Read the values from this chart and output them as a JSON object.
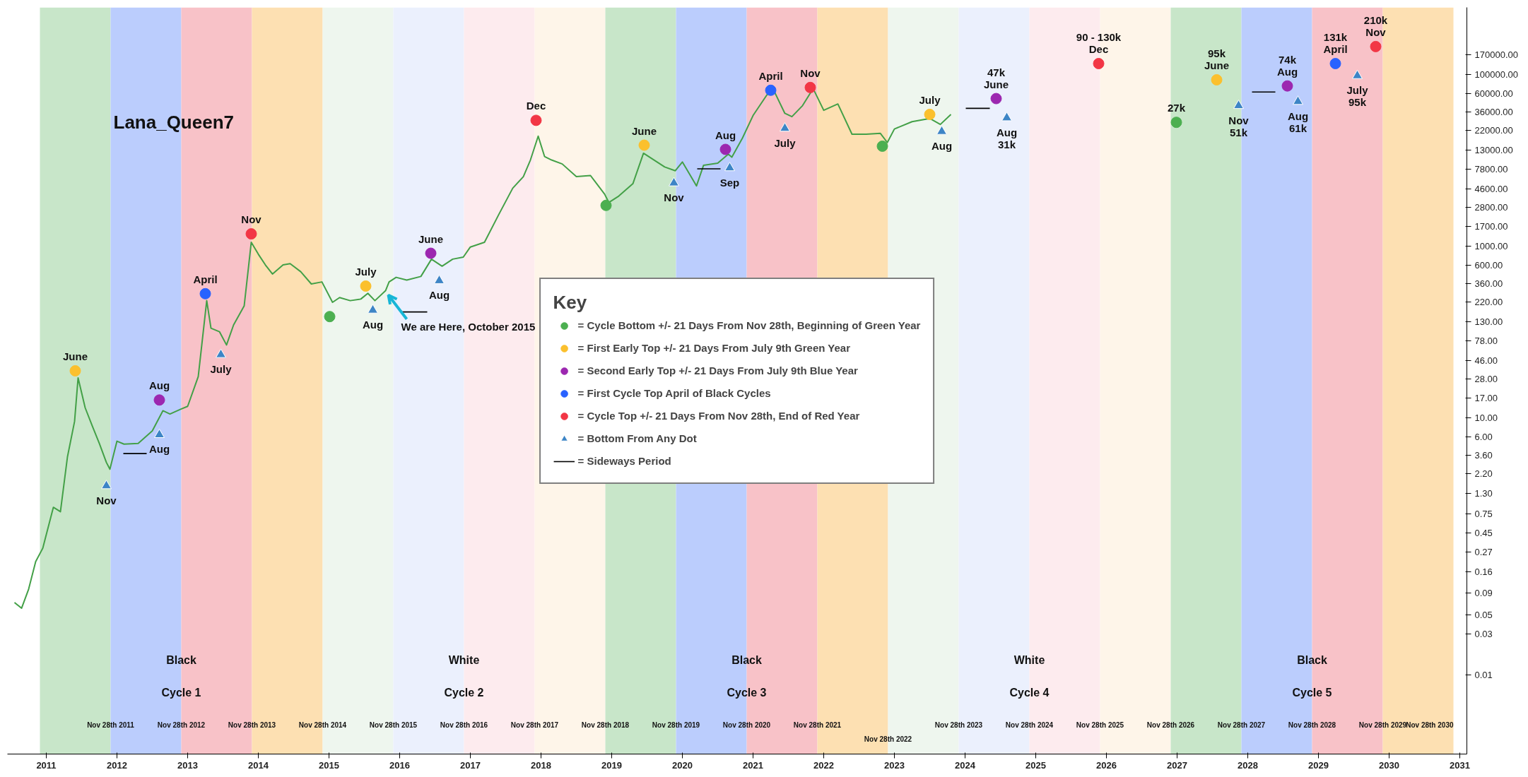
{
  "chart_data": {
    "type": "line",
    "log": "y",
    "grid": false,
    "legend": "center",
    "legend_title": "Key",
    "xlim": [
      2010.45,
      2031.1
    ],
    "ylim": [
      0.0012,
      600000
    ],
    "xticks": [
      2011,
      2012,
      2013,
      2014,
      2015,
      2016,
      2017,
      2018,
      2019,
      2020,
      2021,
      2022,
      2023,
      2024,
      2025,
      2026,
      2027,
      2028,
      2029,
      2030,
      2031
    ],
    "yticks": [
      0.01,
      0.03,
      0.05,
      0.09,
      0.16,
      0.27,
      0.45,
      0.75,
      {
        "value": 1.3,
        "label": "1.30"
      },
      {
        "value": 2.2,
        "label": "2.20"
      },
      {
        "value": 3.6,
        "label": "3.60"
      },
      {
        "value": 6,
        "label": "6.00"
      },
      {
        "value": 10,
        "label": "10.00"
      },
      {
        "value": 17,
        "label": "17.00"
      },
      {
        "value": 28,
        "label": "28.00"
      },
      {
        "value": 46,
        "label": "46.00"
      },
      {
        "value": 78,
        "label": "78.00"
      },
      {
        "value": 130,
        "label": "130.00"
      },
      {
        "value": 220,
        "label": "220.00"
      },
      {
        "value": 360,
        "label": "360.00"
      },
      {
        "value": 600,
        "label": "600.00"
      },
      {
        "value": 1000,
        "label": "1000.00"
      },
      {
        "value": 1700,
        "label": "1700.00"
      },
      {
        "value": 2800,
        "label": "2800.00"
      },
      {
        "value": 4600,
        "label": "4600.00"
      },
      {
        "value": 7800,
        "label": "7800.00"
      },
      {
        "value": 13000,
        "label": "13000.00"
      },
      {
        "value": 22000,
        "label": "22000.00"
      },
      {
        "value": 36000,
        "label": "36000.00"
      },
      {
        "value": 60000,
        "label": "60000.00"
      },
      {
        "value": 100000,
        "label": "100000.00"
      },
      {
        "value": 170000,
        "label": "170000.00"
      }
    ],
    "bands": [
      {
        "axis": "x",
        "from": 2010.91,
        "to": 2011.91,
        "color": "#c8e6c9"
      },
      {
        "axis": "x",
        "from": 2011.91,
        "to": 2012.91,
        "color": "#bbcdfd"
      },
      {
        "axis": "x",
        "from": 2012.91,
        "to": 2013.91,
        "color": "#f8c2c8"
      },
      {
        "axis": "x",
        "from": 2013.91,
        "to": 2014.91,
        "color": "#fde0b2"
      },
      {
        "axis": "x",
        "from": 2014.91,
        "to": 2015.91,
        "color": "#eef6ee"
      },
      {
        "axis": "x",
        "from": 2015.91,
        "to": 2016.91,
        "color": "#ebf0fd"
      },
      {
        "axis": "x",
        "from": 2016.91,
        "to": 2017.91,
        "color": "#fdebee"
      },
      {
        "axis": "x",
        "from": 2017.91,
        "to": 2018.91,
        "color": "#fef5e9"
      },
      {
        "axis": "x",
        "from": 2018.91,
        "to": 2019.91,
        "color": "#c8e6c9"
      },
      {
        "axis": "x",
        "from": 2019.91,
        "to": 2020.91,
        "color": "#bbcdfd"
      },
      {
        "axis": "x",
        "from": 2020.91,
        "to": 2021.91,
        "color": "#f8c2c8"
      },
      {
        "axis": "x",
        "from": 2021.91,
        "to": 2022.91,
        "color": "#fde0b2"
      },
      {
        "axis": "x",
        "from": 2022.91,
        "to": 2023.91,
        "color": "#eef6ee"
      },
      {
        "axis": "x",
        "from": 2023.91,
        "to": 2024.91,
        "color": "#ebf0fd"
      },
      {
        "axis": "x",
        "from": 2024.91,
        "to": 2025.91,
        "color": "#fdebee"
      },
      {
        "axis": "x",
        "from": 2025.91,
        "to": 2026.91,
        "color": "#fef5e9"
      },
      {
        "axis": "x",
        "from": 2026.91,
        "to": 2027.91,
        "color": "#c8e6c9"
      },
      {
        "axis": "x",
        "from": 2027.91,
        "to": 2028.91,
        "color": "#bbcdfd"
      },
      {
        "axis": "x",
        "from": 2028.91,
        "to": 2029.91,
        "color": "#f8c2c8"
      },
      {
        "axis": "x",
        "from": 2029.91,
        "to": 2030.91,
        "color": "#fde0b2"
      }
    ],
    "series": [
      {
        "color": "#43a047",
        "x": [
          2010.55,
          2010.65,
          2010.75,
          2010.85,
          2010.95,
          2011.1,
          2011.2,
          2011.3,
          2011.4,
          2011.45,
          2011.55,
          2011.65,
          2011.75,
          2011.85,
          2011.9,
          2012.0,
          2012.1,
          2012.3,
          2012.5,
          2012.65,
          2012.75,
          2012.9,
          2013.0,
          2013.15,
          2013.27,
          2013.33,
          2013.45,
          2013.55,
          2013.65,
          2013.8,
          2013.9,
          2014.0,
          2014.1,
          2014.2,
          2014.35,
          2014.45,
          2014.6,
          2014.75,
          2014.9,
          2015.05,
          2015.15,
          2015.3,
          2015.45,
          2015.55,
          2015.65,
          2015.8,
          2015.85,
          2015.95,
          2016.1,
          2016.3,
          2016.45,
          2016.6,
          2016.75,
          2016.9,
          2017.0,
          2017.2,
          2017.4,
          2017.6,
          2017.75,
          2017.85,
          2017.96,
          2018.05,
          2018.15,
          2018.3,
          2018.5,
          2018.7,
          2018.9,
          2018.96,
          2019.1,
          2019.3,
          2019.45,
          2019.6,
          2019.75,
          2019.9,
          2020.0,
          2020.2,
          2020.3,
          2020.5,
          2020.65,
          2020.7,
          2020.85,
          2021.0,
          2021.2,
          2021.3,
          2021.45,
          2021.55,
          2021.7,
          2021.85,
          2022.0,
          2022.2,
          2022.4,
          2022.6,
          2022.8,
          2022.9,
          2023.0,
          2023.25,
          2023.5,
          2023.65,
          2023.8
        ],
        "values": [
          0.07,
          0.06,
          0.1,
          0.21,
          0.3,
          0.9,
          0.8,
          3.5,
          9,
          29,
          13,
          8,
          5,
          3,
          2.5,
          5.3,
          4.9,
          5,
          7,
          12,
          11,
          12.5,
          13.5,
          30,
          230,
          110,
          100,
          70,
          120,
          200,
          1100,
          800,
          600,
          470,
          600,
          620,
          500,
          360,
          380,
          220,
          250,
          230,
          240,
          280,
          230,
          300,
          380,
          430,
          400,
          440,
          700,
          580,
          700,
          740,
          970,
          1100,
          2300,
          4700,
          6400,
          10000,
          19000,
          11000,
          10000,
          9000,
          6400,
          6600,
          4000,
          3200,
          3800,
          5300,
          12000,
          10000,
          8300,
          7500,
          9500,
          5000,
          8700,
          9200,
          11700,
          10800,
          18000,
          33000,
          58000,
          63000,
          35000,
          32000,
          43000,
          68000,
          38000,
          45000,
          20000,
          20000,
          20500,
          16000,
          23000,
          28000,
          30500,
          26000,
          34000
        ]
      },
      {
        "type": "scatter",
        "name": "= Cycle Bottom +/- 21 Days From Nov 28th, Beginning of Green Year",
        "color": "#4caf50",
        "marker": "circle",
        "x": [
          2015.01,
          2018.92,
          2022.83,
          2026.99
        ],
        "values": [
          150,
          2960,
          14500,
          27500
        ]
      },
      {
        "type": "scatter",
        "name": "= First Early Top +/- 21 Days From July 9th Green Year",
        "color": "#fbc02d",
        "marker": "circle",
        "x": [
          2011.41,
          2015.52,
          2019.46,
          2023.5,
          2027.56
        ],
        "values": [
          35,
          340,
          14900,
          34000,
          86000
        ]
      },
      {
        "type": "scatter",
        "name": "= Second Early Top +/- 21 Days From July 9th Blue Year",
        "color": "#9c27b0",
        "marker": "circle",
        "x": [
          2012.6,
          2016.44,
          2020.61,
          2024.44,
          2028.56
        ],
        "values": [
          16,
          820,
          13300,
          52000,
          73000
        ]
      },
      {
        "type": "scatter",
        "name": "= First Cycle Top April of Black Cycles",
        "color": "#2962ff",
        "marker": "circle",
        "x": [
          2013.25,
          2021.25,
          2029.24
        ],
        "values": [
          277,
          65000,
          133000
        ]
      },
      {
        "type": "scatter",
        "name": "= Cycle Top +/- 21 Days From Nov 28th, End of Red Year",
        "color": "#f23645",
        "marker": "circle",
        "x": [
          2013.9,
          2017.93,
          2021.81,
          2025.89,
          2029.81
        ],
        "values": [
          1380,
          29000,
          70000,
          133000,
          210000
        ]
      },
      {
        "type": "scatter",
        "name": "= Bottom From Any Dot",
        "color": "#3d85c6",
        "marker": "triangle",
        "x": [
          2011.85,
          2012.6,
          2013.47,
          2015.62,
          2016.56,
          2019.88,
          2020.67,
          2021.45,
          2023.67,
          2024.59,
          2027.87,
          2028.71,
          2029.55
        ],
        "values": [
          1.6,
          6.3,
          54,
          178,
          393,
          5400,
          8100,
          23400,
          21500,
          31000,
          43000,
          48000,
          96000
        ]
      },
      {
        "type": "line",
        "name": "= Sideways Period",
        "color": "#000000",
        "x": [
          2012.09,
          2012.42,
          null,
          2016.03,
          2016.39,
          null,
          2020.21,
          2020.54,
          null,
          2024.01,
          2024.35,
          null,
          2028.06,
          2028.39
        ],
        "values": [
          3.8,
          3.8,
          null,
          170,
          170,
          null,
          7900,
          7900,
          null,
          40000,
          40000,
          null,
          62000,
          62000
        ]
      }
    ],
    "annotations": [
      "Lana_Queen7",
      {
        "text": "June",
        "x": 2011.41,
        "y": 35
      },
      {
        "text": "Nov",
        "x": 2011.85,
        "y": 1.6
      },
      {
        "text": "Aug",
        "x": 2012.6,
        "y": 16
      },
      {
        "text": "Aug",
        "x": 2012.6,
        "y": 6.3
      },
      {
        "text": "April",
        "x": 2013.25,
        "y": 277
      },
      {
        "text": "July",
        "x": 2013.47,
        "y": 54
      },
      {
        "text": "Nov",
        "x": 2013.9,
        "y": 1380
      },
      {
        "text": "July",
        "x": 2015.52,
        "y": 340
      },
      {
        "text": "Aug",
        "x": 2015.62,
        "y": 178
      },
      {
        "text": "June",
        "x": 2016.44,
        "y": 820
      },
      {
        "text": "Aug",
        "x": 2016.56,
        "y": 393
      },
      {
        "text": "We are Here, October 2015",
        "x": 2015.8,
        "y": 300
      },
      {
        "text": "Dec",
        "x": 2017.93,
        "y": 29000
      },
      {
        "text": "June",
        "x": 2019.46,
        "y": 14900
      },
      {
        "text": "Nov",
        "x": 2019.88,
        "y": 5400
      },
      {
        "text": "Aug",
        "x": 2020.61,
        "y": 13300
      },
      {
        "text": "Sep",
        "x": 2020.67,
        "y": 8100
      },
      {
        "text": "April",
        "x": 2021.25,
        "y": 65000
      },
      {
        "text": "July",
        "x": 2021.45,
        "y": 23400
      },
      {
        "text": "Nov",
        "x": 2021.81,
        "y": 70000
      },
      {
        "text": "July",
        "x": 2023.5,
        "y": 34000
      },
      {
        "text": "Aug",
        "x": 2023.67,
        "y": 21500
      },
      {
        "text": "June",
        "x": 2024.44,
        "y": 52000
      },
      {
        "text": "47k",
        "x": 2024.44,
        "y": 52000
      },
      {
        "text": "Aug",
        "x": 2024.59,
        "y": 31000
      },
      {
        "text": "31k",
        "x": 2024.59,
        "y": 31000
      },
      {
        "text": "Dec",
        "x": 2025.89,
        "y": 133000
      },
      {
        "text": "90 - 130k",
        "x": 2025.89,
        "y": 133000
      },
      {
        "text": "27k",
        "x": 2026.99,
        "y": 27500
      },
      {
        "text": "June",
        "x": 2027.56,
        "y": 86000
      },
      {
        "text": "95k",
        "x": 2027.56,
        "y": 86000
      },
      {
        "text": "Nov",
        "x": 2027.87,
        "y": 43000
      },
      {
        "text": "51k",
        "x": 2027.87,
        "y": 43000
      },
      {
        "text": "Aug",
        "x": 2028.56,
        "y": 73000
      },
      {
        "text": "74k",
        "x": 2028.56,
        "y": 73000
      },
      {
        "text": "Aug",
        "x": 2028.71,
        "y": 48000
      },
      {
        "text": "61k",
        "x": 2028.71,
        "y": 48000
      },
      {
        "text": "April",
        "x": 2029.24,
        "y": 133000
      },
      {
        "text": "131k",
        "x": 2029.24,
        "y": 133000
      },
      {
        "text": "Nov",
        "x": 2029.81,
        "y": 210000
      },
      {
        "text": "210k",
        "x": 2029.81,
        "y": 210000
      },
      {
        "text": "July",
        "x": 2029.55,
        "y": 96000
      },
      {
        "text": "95k",
        "x": 2029.55,
        "y": 96000
      },
      {
        "text": "Black",
        "x": 2012.91,
        "y": 0.0148
      },
      {
        "text": "Cycle 1",
        "x": 2012.91,
        "y": 0.0062
      },
      {
        "text": "White",
        "x": 2016.91,
        "y": 0.0148
      },
      {
        "text": "Cycle 2",
        "x": 2016.91,
        "y": 0.0062
      },
      {
        "text": "Black",
        "x": 2020.91,
        "y": 0.0148
      },
      {
        "text": "Cycle 3",
        "x": 2020.91,
        "y": 0.0062
      },
      {
        "text": "White",
        "x": 2024.91,
        "y": 0.0148
      },
      {
        "text": "Cycle 4",
        "x": 2024.91,
        "y": 0.0062
      },
      {
        "text": "Black",
        "x": 2028.91,
        "y": 0.0148
      },
      {
        "text": "Cycle 5",
        "x": 2028.91,
        "y": 0.0062
      },
      {
        "text": "Nov 28th 2011",
        "x": 2011.91,
        "y": 0.0026
      },
      {
        "text": "Nov 28th 2012",
        "x": 2012.91,
        "y": 0.0026
      },
      {
        "text": "Nov 28th 2013",
        "x": 2013.91,
        "y": 0.0026
      },
      {
        "text": "Nov 28th 2014",
        "x": 2014.91,
        "y": 0.0026
      },
      {
        "text": "Nov 28th 2015",
        "x": 2015.91,
        "y": 0.0026
      },
      {
        "text": "Nov 28th 2016",
        "x": 2016.91,
        "y": 0.0026
      },
      {
        "text": "Nov 28th 2017",
        "x": 2017.91,
        "y": 0.0026
      },
      {
        "text": "Nov 28th 2018",
        "x": 2018.91,
        "y": 0.0026
      },
      {
        "text": "Nov 28th 2019",
        "x": 2019.91,
        "y": 0.0026
      },
      {
        "text": "Nov 28th 2020",
        "x": 2020.91,
        "y": 0.0026
      },
      {
        "text": "Nov 28th 2021",
        "x": 2021.91,
        "y": 0.0026
      },
      {
        "text": "Nov 28th 2022",
        "x": 2022.91,
        "y": 0.0018
      },
      {
        "text": "Nov 28th 2023",
        "x": 2023.91,
        "y": 0.0026
      },
      {
        "text": "Nov 28th 2024",
        "x": 2024.91,
        "y": 0.0026
      },
      {
        "text": "Nov 28th 2025",
        "x": 2025.91,
        "y": 0.0026
      },
      {
        "text": "Nov 28th 2026",
        "x": 2026.91,
        "y": 0.0026
      },
      {
        "text": "Nov 28th 2027",
        "x": 2027.91,
        "y": 0.0026
      },
      {
        "text": "Nov 28th 2028",
        "x": 2028.91,
        "y": 0.0026
      },
      {
        "text": "Nov 28th 2029",
        "x": 2029.91,
        "y": 0.0026
      },
      {
        "text": "Nov 28th 2030",
        "x": 2030.91,
        "y": 0.0026
      }
    ]
  }
}
